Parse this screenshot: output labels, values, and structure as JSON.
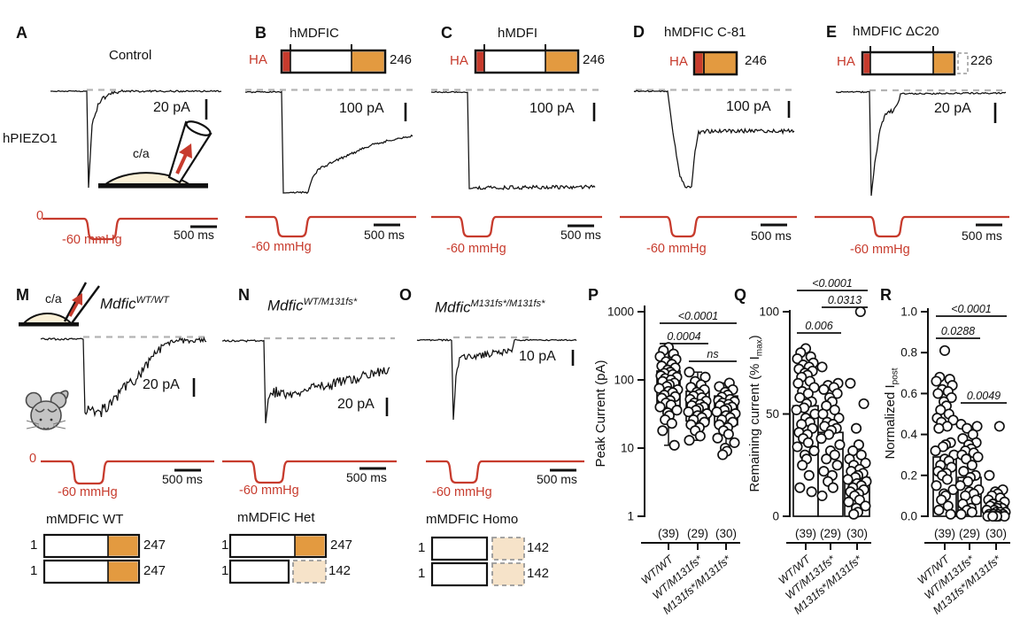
{
  "figure": {
    "colors": {
      "red": "#C73B2D",
      "orange": "#E39A40",
      "peach": "#F6E3C9",
      "gray_dash": "#b3b3b3",
      "black": "#111111",
      "cream": "#FAF0D7"
    },
    "panels_top": [
      {
        "letter": "A",
        "title": "Control",
        "cell_label": "hPIEZO1",
        "inset_label": "c/a",
        "current_scale": "20 pA",
        "pressure_zero": "0",
        "pressure_label": "-60 mmHg",
        "time_scale": "500 ms"
      },
      {
        "letter": "B",
        "title": "hMDFIC",
        "ha": "HA",
        "length": "246",
        "current_scale": "100 pA",
        "pressure_label": "-60 mmHg",
        "time_scale": "500 ms"
      },
      {
        "letter": "C",
        "title": "hMDFI",
        "ha": "HA",
        "length": "246",
        "current_scale": "100 pA",
        "pressure_label": "-60 mmHg",
        "time_scale": "500 ms"
      },
      {
        "letter": "D",
        "title": "hMDFIC C-81",
        "ha": "HA",
        "length": "246",
        "current_scale": "100 pA",
        "pressure_label": "-60 mmHg",
        "time_scale": "500 ms"
      },
      {
        "letter": "E",
        "title": "hMDFIC ΔC20",
        "ha": "HA",
        "length": "226",
        "current_scale": "20 pA",
        "pressure_label": "-60 mmHg",
        "time_scale": "500 ms"
      }
    ],
    "panels_mouse": [
      {
        "letter": "M",
        "genotype_base": "Mdfic",
        "genotype_sup": "WT/WT",
        "inset_label": "c/a",
        "current_scale": "20 pA",
        "pressure_zero": "0",
        "pressure_label": "-60 mmHg",
        "time_scale": "500 ms",
        "diagram_title": "mMDFIC WT",
        "rows": [
          {
            "start": "1",
            "end": "247"
          },
          {
            "start": "1",
            "end": "247"
          }
        ]
      },
      {
        "letter": "N",
        "genotype_base": "Mdfic",
        "genotype_sup": "WT/M131fs*",
        "current_scale": "20 pA",
        "pressure_label": "-60 mmHg",
        "time_scale": "500 ms",
        "diagram_title": "mMDFIC Het",
        "rows": [
          {
            "start": "1",
            "end": "247"
          },
          {
            "start": "1",
            "end": "142"
          }
        ]
      },
      {
        "letter": "O",
        "genotype_base": "Mdfic",
        "genotype_sup": "M131fs*/M131fs*",
        "current_scale": "10 pA",
        "pressure_label": "-60 mmHg",
        "time_scale": "500 ms",
        "diagram_title": "mMDFIC Homo",
        "rows": [
          {
            "start": "1",
            "end": "142"
          },
          {
            "start": "1",
            "end": "142"
          }
        ]
      }
    ]
  },
  "chart_data": [
    {
      "id": "P",
      "letter": "P",
      "type": "scatter",
      "yscale": "log",
      "ylim": [
        1,
        1000
      ],
      "ylabel": {
        "pre": "Peak Current (pA)",
        "sub": "",
        "post": ""
      },
      "yticks": [
        {
          "v": 1,
          "label": "1"
        },
        {
          "v": 10,
          "label": "10"
        },
        {
          "v": 100,
          "label": "100"
        },
        {
          "v": 1000,
          "label": "1000"
        }
      ],
      "categories": [
        "WT/WT",
        "WT/M131fs*",
        "M131fs*/M131fs*"
      ],
      "counts": [
        "(39)",
        "(29)",
        "(30)"
      ],
      "box_ranges": [
        [
          42,
          135
        ],
        [
          25,
          68
        ],
        [
          22,
          58
        ]
      ],
      "whiskers": [
        [
          11,
          300
        ],
        [
          13,
          130
        ],
        [
          8,
          90
        ]
      ],
      "series": [
        {
          "name": "WT/WT",
          "values": [
            300,
            270,
            240,
            220,
            200,
            185,
            170,
            160,
            150,
            140,
            130,
            125,
            120,
            115,
            110,
            105,
            100,
            95,
            90,
            85,
            80,
            75,
            72,
            68,
            65,
            60,
            57,
            54,
            50,
            46,
            43,
            40,
            36,
            33,
            30,
            26,
            23,
            18,
            11
          ]
        },
        {
          "name": "WT/M131fs*",
          "values": [
            130,
            110,
            95,
            85,
            78,
            72,
            66,
            62,
            58,
            55,
            52,
            49,
            46,
            44,
            42,
            40,
            38,
            36,
            34,
            32,
            30,
            28,
            26,
            24,
            22,
            20,
            18,
            15,
            13
          ]
        },
        {
          "name": "M131fs*/M131fs*",
          "values": [
            90,
            80,
            72,
            66,
            60,
            56,
            52,
            50,
            48,
            46,
            44,
            42,
            40,
            38,
            36,
            34,
            32,
            30,
            28,
            26,
            24,
            22,
            20,
            18,
            16,
            14,
            12,
            10,
            9,
            8
          ]
        }
      ],
      "significance": [
        {
          "pair": [
            0,
            2
          ],
          "label": "<0.0001"
        },
        {
          "pair": [
            0,
            1
          ],
          "label": "0.0004"
        },
        {
          "pair": [
            1,
            2
          ],
          "label": "ns"
        }
      ]
    },
    {
      "id": "Q",
      "letter": "Q",
      "type": "scatter",
      "yscale": "linear",
      "ylim": [
        0,
        100
      ],
      "ylabel": {
        "pre": "Remaining current (% I",
        "sub": "max",
        "post": ")"
      },
      "yticks": [
        {
          "v": 0,
          "label": "0"
        },
        {
          "v": 50,
          "label": "50"
        },
        {
          "v": 100,
          "label": "100"
        }
      ],
      "categories": [
        "WT/WT",
        "WT/M131fs*",
        "M131fs*/M131fs*"
      ],
      "counts": [
        "(39)",
        "(29)",
        "(30)"
      ],
      "bar_values": [
        54,
        41,
        19
      ],
      "series": [
        {
          "name": "WT/WT",
          "values": [
            82,
            80,
            78,
            77,
            75,
            74,
            73,
            72,
            71,
            70,
            69,
            68,
            66,
            65,
            63,
            61,
            60,
            58,
            56,
            55,
            53,
            52,
            50,
            48,
            46,
            45,
            43,
            41,
            40,
            38,
            36,
            34,
            32,
            30,
            28,
            25,
            20,
            14,
            12
          ]
        },
        {
          "name": "WT/M131fs*",
          "values": [
            73,
            65,
            64,
            63,
            62,
            60,
            58,
            56,
            54,
            52,
            50,
            48,
            46,
            45,
            44,
            43,
            42,
            40,
            38,
            35,
            32,
            30,
            28,
            25,
            22,
            20,
            17,
            14,
            10
          ]
        },
        {
          "name": "M131fs*/M131fs*",
          "values": [
            100,
            65,
            55,
            43,
            35,
            32,
            30,
            28,
            26,
            25,
            23,
            22,
            21,
            20,
            19,
            18,
            17,
            16,
            15,
            14,
            13,
            12,
            11,
            10,
            8,
            7,
            5,
            4,
            2,
            1
          ]
        }
      ],
      "significance": [
        {
          "pair": [
            0,
            2
          ],
          "label": "<0.0001"
        },
        {
          "pair": [
            1,
            2
          ],
          "label": "0.0313"
        },
        {
          "pair": [
            0,
            1
          ],
          "label": "0.006"
        }
      ]
    },
    {
      "id": "R",
      "letter": "R",
      "type": "scatter",
      "yscale": "linear",
      "ylim": [
        0,
        1
      ],
      "ylabel": {
        "pre": "Normalized I",
        "sub": "post",
        "post": ""
      },
      "yticks": [
        {
          "v": 0,
          "label": "0.0"
        },
        {
          "v": 0.2,
          "label": "0.2"
        },
        {
          "v": 0.4,
          "label": "0.4"
        },
        {
          "v": 0.6,
          "label": "0.6"
        },
        {
          "v": 0.8,
          "label": "0.8"
        },
        {
          "v": 1,
          "label": "1.0"
        }
      ],
      "categories": [
        "WT/WT",
        "WT/M131fs*",
        "M131fs*/M131fs*"
      ],
      "counts": [
        "(39)",
        "(29)",
        "(30)"
      ],
      "bar_values": [
        0.29,
        0.19,
        0.05
      ],
      "series": [
        {
          "name": "WT/WT",
          "values": [
            0.81,
            0.68,
            0.67,
            0.66,
            0.64,
            0.62,
            0.61,
            0.6,
            0.58,
            0.56,
            0.54,
            0.52,
            0.5,
            0.48,
            0.47,
            0.46,
            0.44,
            0.43,
            0.36,
            0.35,
            0.34,
            0.32,
            0.3,
            0.28,
            0.27,
            0.25,
            0.24,
            0.22,
            0.21,
            0.2,
            0.18,
            0.15,
            0.13,
            0.11,
            0.1,
            0.08,
            0.05,
            0.03,
            0.01
          ]
        },
        {
          "name": "WT/M131fs*",
          "values": [
            0.45,
            0.44,
            0.43,
            0.4,
            0.38,
            0.36,
            0.35,
            0.33,
            0.32,
            0.31,
            0.3,
            0.29,
            0.28,
            0.25,
            0.22,
            0.2,
            0.19,
            0.17,
            0.15,
            0.13,
            0.12,
            0.11,
            0.1,
            0.08,
            0.06,
            0.04,
            0.03,
            0.02,
            0.01
          ]
        },
        {
          "name": "M131fs*/M131fs*",
          "values": [
            0.44,
            0.2,
            0.13,
            0.12,
            0.11,
            0.1,
            0.09,
            0.08,
            0.07,
            0.06,
            0.05,
            0.05,
            0.04,
            0.04,
            0.03,
            0.03,
            0.02,
            0.02,
            0.02,
            0.01,
            0.01,
            0.01,
            0.01,
            0.01,
            0,
            0,
            0,
            0,
            0,
            0
          ]
        }
      ],
      "significance": [
        {
          "pair": [
            0,
            2
          ],
          "label": "<0.0001"
        },
        {
          "pair": [
            0,
            1
          ],
          "label": "0.0288"
        },
        {
          "pair": [
            1,
            2
          ],
          "label": "0.0049"
        }
      ]
    }
  ]
}
